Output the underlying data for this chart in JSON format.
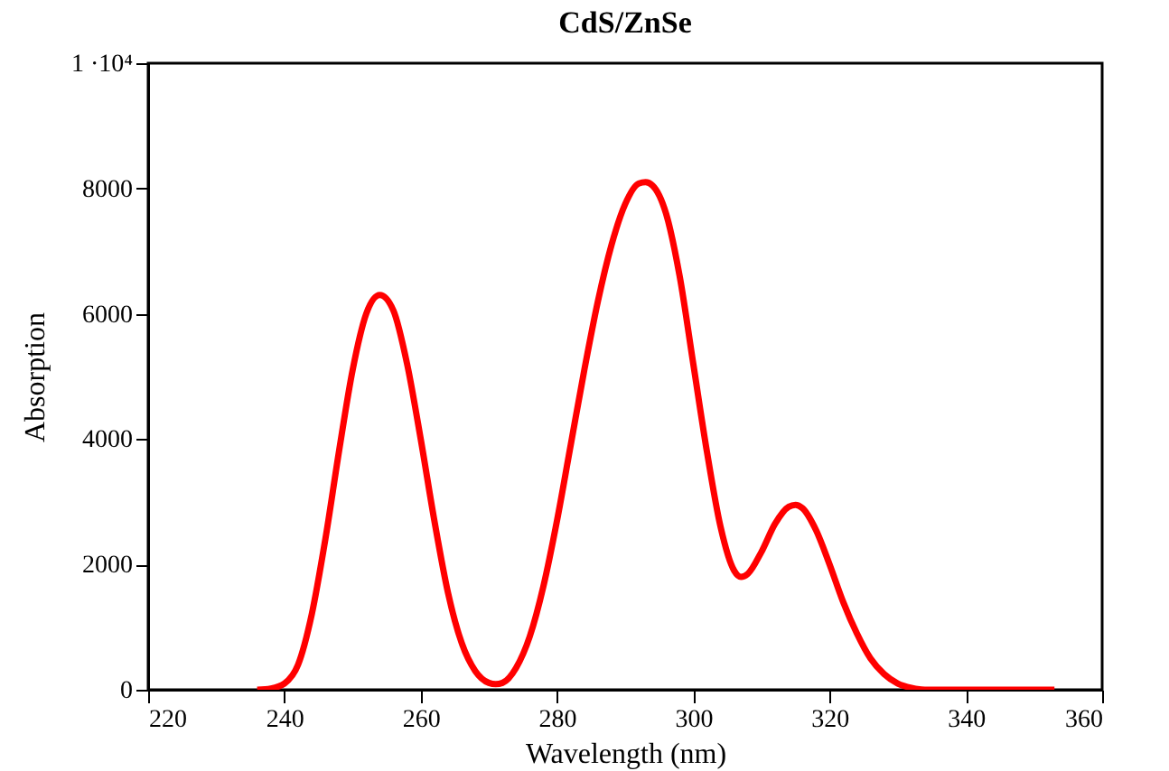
{
  "chart_data": {
    "type": "line",
    "title": "CdS/ZnSe",
    "xlabel": "Wavelength  (nm)",
    "ylabel": "Absorption",
    "x": [
      236,
      238,
      240,
      242,
      244,
      246,
      248,
      250,
      252,
      254,
      256,
      258,
      260,
      262,
      264,
      266,
      268,
      270,
      271,
      272,
      274,
      276,
      278,
      280,
      282,
      284,
      286,
      288,
      290,
      292,
      293,
      294,
      296,
      298,
      300,
      302,
      304,
      306,
      307,
      308,
      310,
      312,
      314,
      315,
      316,
      318,
      320,
      322,
      324,
      326,
      328,
      330,
      332,
      334,
      340,
      353
    ],
    "series": [
      {
        "color": "#ff0000",
        "values": [
          0,
          20,
          100,
          400,
          1200,
          2400,
          3800,
          5100,
          6000,
          6300,
          6050,
          5200,
          4000,
          2700,
          1550,
          750,
          300,
          110,
          90,
          110,
          350,
          850,
          1650,
          2700,
          3900,
          5100,
          6200,
          7100,
          7750,
          8080,
          8100,
          8050,
          7600,
          6600,
          5200,
          3800,
          2600,
          1900,
          1800,
          1850,
          2200,
          2650,
          2920,
          2950,
          2900,
          2550,
          2000,
          1400,
          900,
          500,
          250,
          100,
          30,
          0,
          0,
          0
        ]
      }
    ],
    "xlim": [
      220,
      360
    ],
    "xticks": [
      220,
      240,
      260,
      280,
      300,
      320,
      340,
      360
    ],
    "ylim": [
      0,
      10000
    ],
    "yticks": [
      0,
      2000,
      4000,
      6000,
      8000,
      {
        "value": 10000,
        "label": "1 ·10⁴"
      }
    ],
    "grid": false,
    "marker": "none",
    "line_style": "solid"
  }
}
